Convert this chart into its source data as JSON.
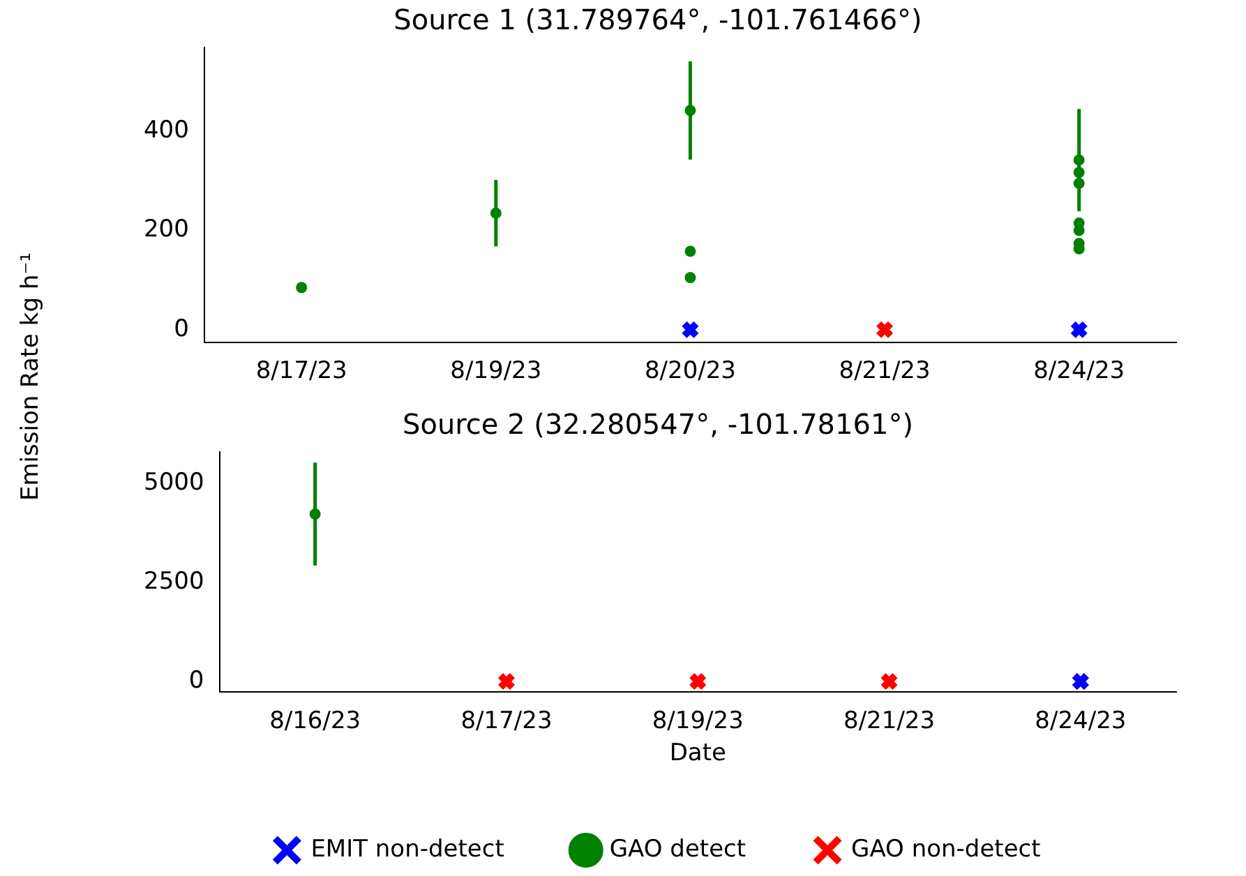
{
  "chart_data": [
    {
      "type": "scatter",
      "title": "Source 1 (31.789764°, -101.761466°)",
      "ylabel": "Emission Rate kg h⁻¹",
      "categories": [
        "8/17/23",
        "8/19/23",
        "8/20/23",
        "8/21/23",
        "8/24/23"
      ],
      "ylim": [
        -26,
        569
      ],
      "yticks": [
        0,
        200,
        400
      ],
      "legend": false,
      "grid": false,
      "series": [
        {
          "color": "#008000",
          "marker": "circle",
          "x": [
            "8/17/23",
            "8/19/23",
            "8/20/23",
            "8/20/23",
            "8/20/23",
            "8/24/23",
            "8/24/23",
            "8/24/23",
            "8/24/23",
            "8/24/23",
            "8/24/23",
            "8/24/23"
          ],
          "values": [
            85,
            235,
            442,
            158,
            105,
            342,
            317,
            295,
            215,
            200,
            174,
            163
          ],
          "errors": [
            null,
            67,
            99,
            null,
            null,
            103,
            null,
            null,
            null,
            null,
            null,
            null
          ]
        },
        {
          "color": "#0000ff",
          "marker": "cross",
          "x": [
            "8/20/23",
            "8/24/23"
          ],
          "values": [
            0,
            0
          ]
        },
        {
          "color": "#ff0000",
          "marker": "cross",
          "x": [
            "8/21/23"
          ],
          "values": [
            0
          ]
        }
      ]
    },
    {
      "type": "scatter",
      "title": "Source 2 (32.280547°, -101.78161°)",
      "xlabel": "Date",
      "categories": [
        "8/16/23",
        "8/17/23",
        "8/19/23",
        "8/21/23",
        "8/24/23"
      ],
      "ylim": [
        -270,
        5800
      ],
      "yticks": [
        0,
        2500,
        5000
      ],
      "legend": "bottom",
      "grid": false,
      "series": [
        {
          "name": "EMIT non-detect",
          "color": "#0000ff",
          "marker": "cross",
          "x": [
            "8/24/23"
          ],
          "values": [
            0
          ]
        },
        {
          "name": "GAO detect",
          "color": "#008000",
          "marker": "circle",
          "x": [
            "8/16/23"
          ],
          "values": [
            4230
          ],
          "errors": [
            1300
          ]
        },
        {
          "name": "GAO non-detect",
          "color": "#ff0000",
          "marker": "cross",
          "x": [
            "8/17/23",
            "8/19/23",
            "8/21/23",
            "8/24/23"
          ],
          "values": [
            0,
            0,
            0,
            0
          ]
        }
      ]
    }
  ]
}
